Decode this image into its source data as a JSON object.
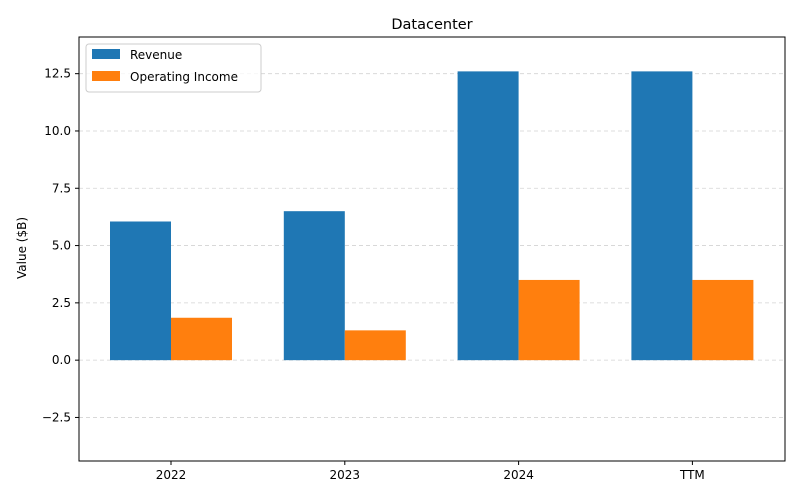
{
  "chart_data": {
    "type": "bar",
    "title": "Datacenter",
    "xlabel": "",
    "ylabel": "Value ($B)",
    "categories": [
      "2022",
      "2023",
      "2024",
      "TTM"
    ],
    "series": [
      {
        "name": "Revenue",
        "color": "#1f77b4",
        "values": [
          6.05,
          6.5,
          12.6,
          12.6
        ]
      },
      {
        "name": "Operating Income",
        "color": "#ff7f0e",
        "values": [
          1.85,
          1.3,
          3.5,
          3.5
        ]
      }
    ],
    "ylim": [
      -4.4,
      14.1
    ],
    "yticks": [
      -2.5,
      0.0,
      2.5,
      5.0,
      7.5,
      10.0,
      12.5
    ],
    "ytick_labels": [
      "−2.5",
      "0.0",
      "2.5",
      "5.0",
      "7.5",
      "10.0",
      "12.5"
    ],
    "grid": true,
    "legend": "top-left"
  }
}
